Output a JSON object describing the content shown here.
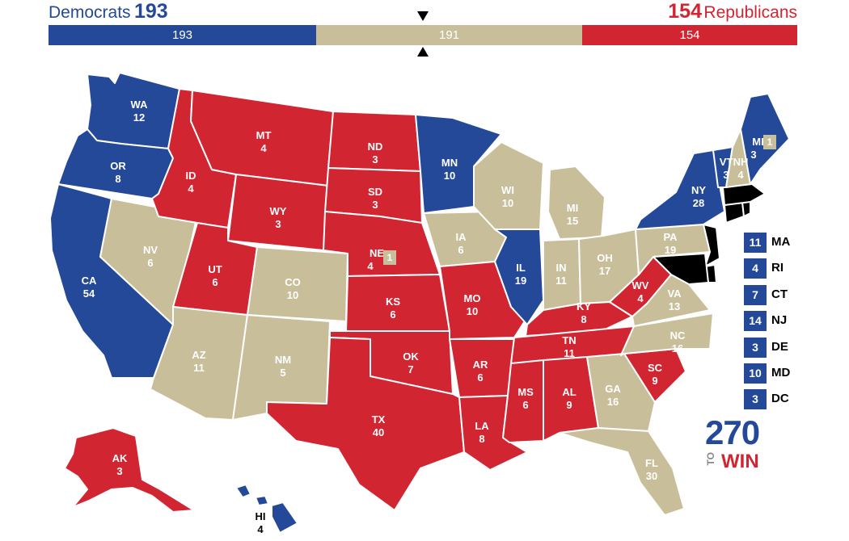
{
  "header": {
    "dem_label": "Democrats",
    "dem_total": "193",
    "rep_total": "154",
    "rep_label": "Republicans"
  },
  "bar": {
    "dem": "193",
    "tossup": "191",
    "rep": "154"
  },
  "colors": {
    "dem": "#244999",
    "rep": "#d22532",
    "tossup": "#c8bf9a"
  },
  "states": {
    "WA": {
      "abbr": "WA",
      "ev": "12",
      "party": "dem"
    },
    "OR": {
      "abbr": "OR",
      "ev": "8",
      "party": "dem"
    },
    "CA": {
      "abbr": "CA",
      "ev": "54",
      "party": "dem"
    },
    "NV": {
      "abbr": "NV",
      "ev": "6",
      "party": "tossup"
    },
    "ID": {
      "abbr": "ID",
      "ev": "4",
      "party": "rep"
    },
    "MT": {
      "abbr": "MT",
      "ev": "4",
      "party": "rep"
    },
    "WY": {
      "abbr": "WY",
      "ev": "3",
      "party": "rep"
    },
    "UT": {
      "abbr": "UT",
      "ev": "6",
      "party": "rep"
    },
    "AZ": {
      "abbr": "AZ",
      "ev": "11",
      "party": "tossup"
    },
    "CO": {
      "abbr": "CO",
      "ev": "10",
      "party": "tossup"
    },
    "NM": {
      "abbr": "NM",
      "ev": "5",
      "party": "tossup"
    },
    "ND": {
      "abbr": "ND",
      "ev": "3",
      "party": "rep"
    },
    "SD": {
      "abbr": "SD",
      "ev": "3",
      "party": "rep"
    },
    "NE": {
      "abbr": "NE",
      "ev": "4",
      "party": "rep",
      "split": "1"
    },
    "KS": {
      "abbr": "KS",
      "ev": "6",
      "party": "rep"
    },
    "OK": {
      "abbr": "OK",
      "ev": "7",
      "party": "rep"
    },
    "TX": {
      "abbr": "TX",
      "ev": "40",
      "party": "rep"
    },
    "MN": {
      "abbr": "MN",
      "ev": "10",
      "party": "dem"
    },
    "IA": {
      "abbr": "IA",
      "ev": "6",
      "party": "tossup"
    },
    "MO": {
      "abbr": "MO",
      "ev": "10",
      "party": "rep"
    },
    "AR": {
      "abbr": "AR",
      "ev": "6",
      "party": "rep"
    },
    "LA": {
      "abbr": "LA",
      "ev": "8",
      "party": "rep"
    },
    "WI": {
      "abbr": "WI",
      "ev": "10",
      "party": "tossup"
    },
    "IL": {
      "abbr": "IL",
      "ev": "19",
      "party": "dem"
    },
    "MI": {
      "abbr": "MI",
      "ev": "15",
      "party": "tossup"
    },
    "IN": {
      "abbr": "IN",
      "ev": "11",
      "party": "tossup"
    },
    "OH": {
      "abbr": "OH",
      "ev": "17",
      "party": "tossup"
    },
    "KY": {
      "abbr": "KY",
      "ev": "8",
      "party": "rep"
    },
    "TN": {
      "abbr": "TN",
      "ev": "11",
      "party": "rep"
    },
    "MS": {
      "abbr": "MS",
      "ev": "6",
      "party": "rep"
    },
    "AL": {
      "abbr": "AL",
      "ev": "9",
      "party": "rep"
    },
    "GA": {
      "abbr": "GA",
      "ev": "16",
      "party": "tossup"
    },
    "FL": {
      "abbr": "FL",
      "ev": "30",
      "party": "tossup"
    },
    "SC": {
      "abbr": "SC",
      "ev": "9",
      "party": "rep"
    },
    "NC": {
      "abbr": "NC",
      "ev": "16",
      "party": "tossup"
    },
    "VA": {
      "abbr": "VA",
      "ev": "13",
      "party": "tossup"
    },
    "WV": {
      "abbr": "WV",
      "ev": "4",
      "party": "rep"
    },
    "PA": {
      "abbr": "PA",
      "ev": "19",
      "party": "tossup"
    },
    "NY": {
      "abbr": "NY",
      "ev": "28",
      "party": "dem"
    },
    "VT": {
      "abbr": "VT",
      "ev": "3",
      "party": "dem"
    },
    "NH": {
      "abbr": "NH",
      "ev": "4",
      "party": "tossup"
    },
    "ME": {
      "abbr": "ME",
      "ev": "3",
      "party": "dem",
      "split": "1"
    },
    "AK": {
      "abbr": "AK",
      "ev": "3",
      "party": "rep"
    },
    "HI": {
      "abbr": "HI",
      "ev": "4",
      "party": "dem"
    }
  },
  "small_states": [
    {
      "ev": "11",
      "abbr": "MA"
    },
    {
      "ev": "4",
      "abbr": "RI"
    },
    {
      "ev": "7",
      "abbr": "CT"
    },
    {
      "ev": "14",
      "abbr": "NJ"
    },
    {
      "ev": "3",
      "abbr": "DE"
    },
    {
      "ev": "10",
      "abbr": "MD"
    },
    {
      "ev": "3",
      "abbr": "DC"
    }
  ],
  "logo": {
    "number": "270",
    "to": "TO",
    "win": "WIN"
  }
}
